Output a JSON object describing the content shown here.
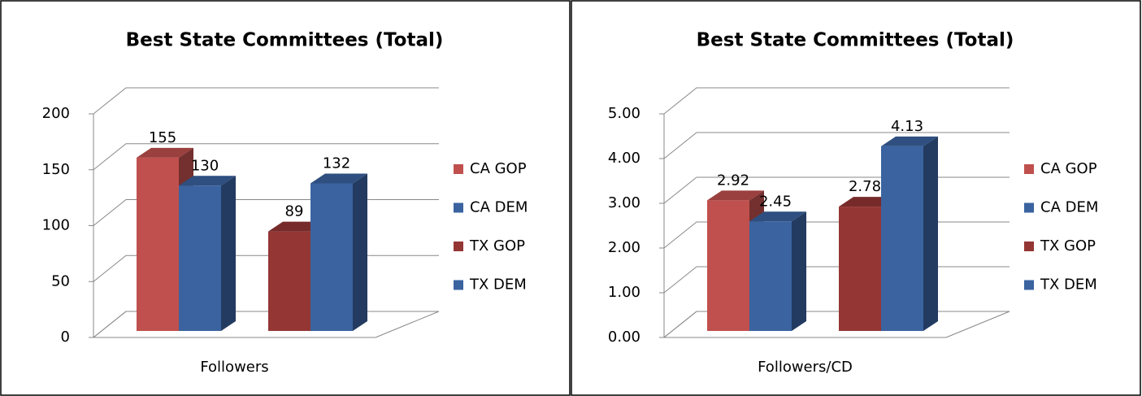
{
  "chart_data": [
    {
      "type": "bar",
      "title": "Best State Committees (Total)",
      "categories": [
        "Followers"
      ],
      "series": [
        {
          "name": "CA GOP",
          "color": "#c0504d",
          "values": [
            155
          ]
        },
        {
          "name": "CA DEM",
          "color": "#3a63a0",
          "values": [
            130
          ]
        },
        {
          "name": "TX GOP",
          "color": "#943634",
          "values": [
            89
          ]
        },
        {
          "name": "TX DEM",
          "color": "#3a63a0",
          "values": [
            132
          ]
        }
      ],
      "ylim": [
        0,
        200
      ],
      "yticks": [
        0,
        50,
        100,
        150,
        200
      ],
      "grid": true,
      "legend": "right"
    },
    {
      "type": "bar",
      "title": "Best State Committees (Total)",
      "categories": [
        "Followers/CD"
      ],
      "series": [
        {
          "name": "CA GOP",
          "color": "#c0504d",
          "values": [
            2.92
          ]
        },
        {
          "name": "CA DEM",
          "color": "#3a63a0",
          "values": [
            2.45
          ]
        },
        {
          "name": "TX GOP",
          "color": "#943634",
          "values": [
            2.78
          ]
        },
        {
          "name": "TX DEM",
          "color": "#3a63a0",
          "values": [
            4.13
          ]
        }
      ],
      "ylim": [
        0,
        5
      ],
      "yticks": [
        {
          "value": 0,
          "label": "0.00"
        },
        {
          "value": 1,
          "label": "1.00"
        },
        {
          "value": 2,
          "label": "2.00"
        },
        {
          "value": 3,
          "label": "3.00"
        },
        {
          "value": 4,
          "label": "4.00"
        },
        {
          "value": 5,
          "label": "5.00"
        }
      ],
      "grid": true,
      "legend": "right"
    }
  ]
}
